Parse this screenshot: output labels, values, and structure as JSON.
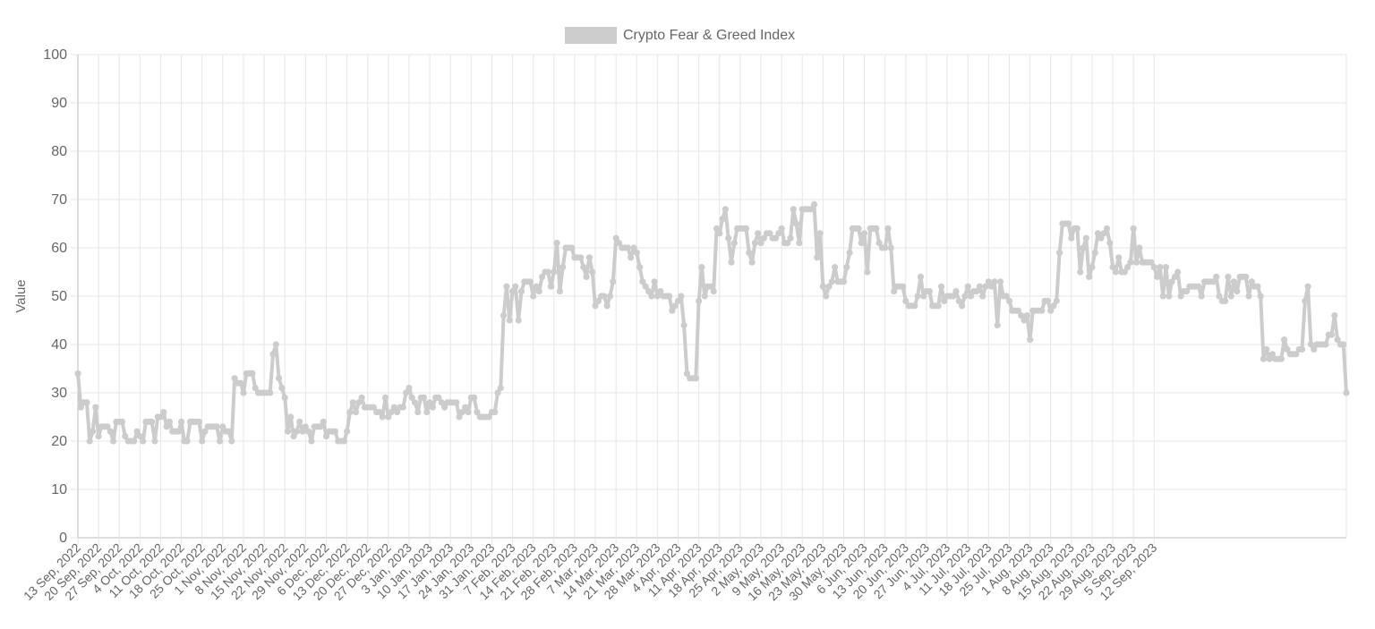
{
  "chart_data": {
    "type": "line",
    "legend": {
      "label": "Crypto Fear & Greed Index",
      "position": "top",
      "color": "#cccccc"
    },
    "ylabel": "Value",
    "xlabel": "",
    "ylim": [
      0,
      100
    ],
    "yticks": [
      0,
      10,
      20,
      30,
      40,
      50,
      60,
      70,
      80,
      90,
      100
    ],
    "grid": true,
    "x_tick_labels": [
      "13 Sep, 2022",
      "20 Sep, 2022",
      "27 Sep, 2022",
      "4 Oct, 2022",
      "11 Oct, 2022",
      "18 Oct, 2022",
      "25 Oct, 2022",
      "1 Nov, 2022",
      "8 Nov, 2022",
      "15 Nov, 2022",
      "22 Nov, 2022",
      "29 Nov, 2022",
      "6 Dec, 2022",
      "13 Dec, 2022",
      "20 Dec, 2022",
      "27 Dec, 2022",
      "3 Jan, 2023",
      "10 Jan, 2023",
      "17 Jan, 2023",
      "24 Jan, 2023",
      "31 Jan, 2023",
      "7 Feb, 2023",
      "14 Feb, 2023",
      "21 Feb, 2023",
      "28 Feb, 2023",
      "7 Mar, 2023",
      "14 Mar, 2023",
      "21 Mar, 2023",
      "28 Mar, 2023",
      "4 Apr, 2023",
      "11 Apr, 2023",
      "18 Apr, 2023",
      "25 Apr, 2023",
      "2 May, 2023",
      "9 May, 2023",
      "16 May, 2023",
      "23 May, 2023",
      "30 May, 2023",
      "6 Jun, 2023",
      "13 Jun, 2023",
      "20 Jun, 2023",
      "27 Jun, 2023",
      "4 Jul, 2023",
      "11 Jul, 2023",
      "18 Jul, 2023",
      "25 Jul, 2023",
      "1 Aug, 2023",
      "8 Aug, 2023",
      "15 Aug, 2023",
      "22 Aug, 2023",
      "29 Aug, 2023",
      "5 Sep, 2023",
      "12 Sep, 2023"
    ],
    "series": [
      {
        "name": "Crypto Fear & Greed Index",
        "color": "#cccccc",
        "start_date": "2022-09-13",
        "values": [
          34,
          27,
          28,
          28,
          20,
          22,
          27,
          21,
          23,
          23,
          23,
          22,
          20,
          24,
          24,
          24,
          21,
          20,
          20,
          20,
          22,
          21,
          20,
          24,
          24,
          24,
          20,
          25,
          25,
          26,
          23,
          24,
          22,
          22,
          22,
          24,
          20,
          20,
          24,
          24,
          24,
          24,
          20,
          22,
          23,
          23,
          23,
          23,
          20,
          23,
          22,
          22,
          20,
          33,
          32,
          32,
          30,
          34,
          34,
          34,
          31,
          30,
          30,
          30,
          30,
          30,
          38,
          40,
          33,
          31,
          29,
          22,
          25,
          21,
          22,
          24,
          22,
          23,
          22,
          20,
          23,
          23,
          23,
          24,
          21,
          22,
          22,
          22,
          20,
          20,
          20,
          22,
          26,
          28,
          26,
          28,
          29,
          27,
          27,
          27,
          27,
          26,
          26,
          25,
          29,
          25,
          26,
          27,
          26,
          27,
          27,
          30,
          31,
          29,
          28,
          26,
          29,
          29,
          26,
          28,
          27,
          29,
          29,
          28,
          27,
          28,
          28,
          28,
          28,
          25,
          26,
          27,
          26,
          29,
          29,
          26,
          25,
          25,
          25,
          25,
          26,
          26,
          30,
          31,
          46,
          52,
          45,
          51,
          52,
          45,
          51,
          53,
          53,
          53,
          50,
          52,
          51,
          54,
          55,
          55,
          52,
          55,
          61,
          51,
          56,
          60,
          60,
          60,
          58,
          58,
          58,
          56,
          54,
          58,
          55,
          48,
          49,
          50,
          50,
          48,
          50,
          53,
          62,
          61,
          60,
          60,
          60,
          58,
          60,
          59,
          56,
          53,
          52,
          51,
          50,
          53,
          50,
          51,
          50,
          50,
          50,
          47,
          48,
          49,
          50,
          44,
          34,
          33,
          33,
          33,
          49,
          56,
          50,
          52,
          52,
          51,
          64,
          63,
          66,
          68,
          62,
          57,
          61,
          64,
          64,
          64,
          64,
          59,
          57,
          61,
          63,
          61,
          62,
          63,
          63,
          62,
          62,
          63,
          64,
          61,
          61,
          62,
          68,
          65,
          61,
          68,
          68,
          68,
          68,
          69,
          58,
          63,
          52,
          50,
          52,
          53,
          56,
          53,
          53,
          53,
          56,
          59,
          64,
          64,
          64,
          61,
          63,
          55,
          64,
          64,
          64,
          61,
          60,
          60,
          64,
          60,
          51,
          52,
          52,
          52,
          49,
          48,
          48,
          48,
          50,
          54,
          50,
          51,
          51,
          48,
          48,
          48,
          52,
          49,
          50,
          50,
          50,
          51,
          49,
          48,
          50,
          52,
          50,
          51,
          51,
          52,
          50,
          52,
          53,
          52,
          53,
          44,
          53,
          50,
          50,
          49,
          47,
          47,
          47,
          46,
          45,
          46,
          41,
          47,
          47,
          47,
          47,
          49,
          49,
          47,
          48,
          49,
          59,
          65,
          65,
          65,
          62,
          64,
          64,
          55,
          60,
          62,
          54,
          56,
          59,
          63,
          62,
          63,
          64,
          61,
          56,
          55,
          58,
          55,
          55,
          56,
          57,
          64,
          57,
          60,
          57,
          57,
          57,
          57,
          56,
          54,
          56,
          50,
          56,
          50,
          53,
          54,
          55,
          50,
          51,
          51,
          52,
          52,
          52,
          52,
          50,
          53,
          53,
          53,
          53,
          54,
          50,
          49,
          49,
          54,
          50,
          53,
          51,
          54,
          54,
          54,
          50,
          53,
          52,
          52,
          50,
          37,
          39,
          37,
          38,
          37,
          37,
          37,
          41,
          39,
          38,
          38,
          38,
          39,
          39,
          49,
          52,
          40,
          39,
          40,
          40,
          40,
          40,
          42,
          42,
          46,
          41,
          40,
          40,
          30
        ]
      }
    ]
  }
}
